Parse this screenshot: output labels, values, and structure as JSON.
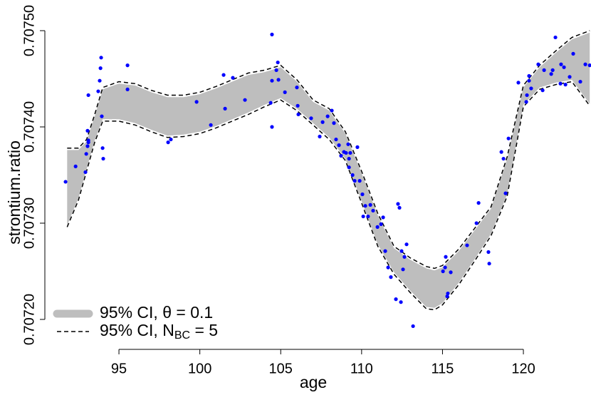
{
  "chart_data": {
    "type": "scatter",
    "xlabel": "age",
    "ylabel": "strontium.ratio",
    "xlim": [
      91.6,
      124.1
    ],
    "ylim": [
      0.70719,
      0.707505
    ],
    "xticks": [
      95,
      100,
      105,
      110,
      115,
      120
    ],
    "yticks": [
      {
        "value": 0.7072,
        "label": "0.70720"
      },
      {
        "value": 0.7073,
        "label": "0.70730"
      },
      {
        "value": 0.7074,
        "label": "0.70740"
      },
      {
        "value": 0.7075,
        "label": "0.70750"
      }
    ],
    "points": {
      "color": "#0000ff",
      "x": [
        91.7,
        92.32,
        92.93,
        92.98,
        93.06,
        93.11,
        93.06,
        93.11,
        93.11,
        93.72,
        93.81,
        93.86,
        93.9,
        93.94,
        93.99,
        94.03,
        95.53,
        95.53,
        98.04,
        98.21,
        99.8,
        100.68,
        101.47,
        101.56,
        102.04,
        102.79,
        104.38,
        104.46,
        104.46,
        104.46,
        104.73,
        104.82,
        104.86,
        105.26,
        106.0,
        106.05,
        106.09,
        106.88,
        107.41,
        107.59,
        107.9,
        108.16,
        108.29,
        108.42,
        108.6,
        108.73,
        108.91,
        109.04,
        109.22,
        109.22,
        109.17,
        109.3,
        109.44,
        109.57,
        109.74,
        109.88,
        110.05,
        110.1,
        110.23,
        110.4,
        110.54,
        110.71,
        110.98,
        111.2,
        111.33,
        111.46,
        111.64,
        111.81,
        112.12,
        112.25,
        112.34,
        112.43,
        112.47,
        112.56,
        112.65,
        112.78,
        113.18,
        115.03,
        115.16,
        115.2,
        115.29,
        115.33,
        115.51,
        116.52,
        117.1,
        117.23,
        117.84,
        117.89,
        118.64,
        118.77,
        118.9,
        119.08,
        119.69,
        120.18,
        120.22,
        120.35,
        120.35,
        120.48,
        120.92,
        121.19,
        121.28,
        121.72,
        121.81,
        121.98,
        122.29,
        122.33,
        122.51,
        122.6,
        122.86,
        123.08,
        123.52,
        123.83,
        124.1
      ],
      "values": [
        0.707343,
        0.707359,
        0.707353,
        0.707372,
        0.70738,
        0.707384,
        0.707396,
        0.707386,
        0.707433,
        0.707437,
        0.707448,
        0.707461,
        0.707472,
        0.707411,
        0.707378,
        0.707367,
        0.707464,
        0.707439,
        0.707384,
        0.707387,
        0.707426,
        0.707402,
        0.707454,
        0.707419,
        0.707451,
        0.707428,
        0.707425,
        0.707496,
        0.707448,
        0.7074,
        0.707459,
        0.707467,
        0.707449,
        0.707436,
        0.707441,
        0.707422,
        0.707413,
        0.707409,
        0.70739,
        0.707405,
        0.707411,
        0.707417,
        0.707404,
        0.707387,
        0.707381,
        0.70737,
        0.707374,
        0.707373,
        0.707367,
        0.707358,
        0.707382,
        0.707373,
        0.70735,
        0.707344,
        0.707379,
        0.707344,
        0.70733,
        0.707307,
        0.707318,
        0.707307,
        0.707319,
        0.707313,
        0.707296,
        0.707299,
        0.707306,
        0.707271,
        0.707254,
        0.707244,
        0.707221,
        0.70732,
        0.707316,
        0.707218,
        0.707271,
        0.707252,
        0.707265,
        0.707278,
        0.707193,
        0.70725,
        0.707254,
        0.707265,
        0.707224,
        0.707227,
        0.707249,
        0.707277,
        0.7073,
        0.707321,
        0.70727,
        0.707258,
        0.707374,
        0.707367,
        0.707331,
        0.707388,
        0.707446,
        0.707426,
        0.707433,
        0.707453,
        0.707448,
        0.70744,
        0.707465,
        0.707438,
        0.707459,
        0.707455,
        0.707459,
        0.707493,
        0.707445,
        0.707465,
        0.707462,
        0.707444,
        0.707452,
        0.707476,
        0.707447,
        0.707465,
        0.707464
      ]
    },
    "bands": [
      {
        "name": "95% CI, θ = 0.1",
        "color": "#bebebe",
        "style": "fill",
        "x": [
          91.8,
          92.5,
          93,
          93.5,
          94,
          95,
          96,
          97,
          98,
          99,
          100,
          101,
          102,
          103,
          104,
          105,
          106,
          107,
          108,
          109,
          110,
          111,
          112,
          113,
          114,
          114.5,
          115,
          116,
          117,
          118,
          119,
          120,
          121,
          122,
          123,
          124.1
        ],
        "upper": [
          0.707376,
          0.707376,
          0.707385,
          0.707411,
          0.707439,
          0.707445,
          0.707443,
          0.707436,
          0.707431,
          0.707431,
          0.707434,
          0.70744,
          0.707447,
          0.707454,
          0.707457,
          0.707462,
          0.707447,
          0.707426,
          0.707417,
          0.707393,
          0.707352,
          0.707308,
          0.707274,
          0.707262,
          0.707253,
          0.707251,
          0.707254,
          0.707271,
          0.707293,
          0.707315,
          0.707367,
          0.707441,
          0.707462,
          0.707477,
          0.707491,
          0.707498
        ],
        "lower": [
          0.707298,
          0.707326,
          0.707356,
          0.707386,
          0.707408,
          0.707408,
          0.707404,
          0.707397,
          0.707391,
          0.707392,
          0.707395,
          0.707401,
          0.707408,
          0.707415,
          0.707423,
          0.70743,
          0.707419,
          0.707404,
          0.707389,
          0.707367,
          0.707323,
          0.707278,
          0.707249,
          0.70723,
          0.707213,
          0.707212,
          0.707217,
          0.707238,
          0.707263,
          0.707289,
          0.70733,
          0.707423,
          0.707441,
          0.707446,
          0.707449,
          0.707424
        ]
      },
      {
        "name": {
          "main": "95% CI, N",
          "sub": "BC",
          "rest": " = 5"
        },
        "color": "#000000",
        "style": "dashed",
        "x": [
          91.8,
          92.5,
          93,
          93.5,
          94,
          95,
          96,
          97,
          98,
          99,
          100,
          101,
          102,
          103,
          104,
          105,
          106,
          107,
          108,
          109,
          110,
          111,
          112,
          113,
          114,
          114.5,
          115,
          116,
          117,
          118,
          119,
          120,
          121,
          122,
          123,
          124.1
        ],
        "upper": [
          0.707378,
          0.707378,
          0.707387,
          0.707413,
          0.707441,
          0.707447,
          0.707445,
          0.707438,
          0.707433,
          0.707433,
          0.707436,
          0.707442,
          0.707449,
          0.707456,
          0.707459,
          0.707464,
          0.707449,
          0.707428,
          0.707419,
          0.707395,
          0.707354,
          0.70731,
          0.707276,
          0.707264,
          0.707255,
          0.707253,
          0.707256,
          0.707273,
          0.707295,
          0.707317,
          0.707369,
          0.707443,
          0.707464,
          0.707479,
          0.707493,
          0.7075
        ],
        "lower": [
          0.707296,
          0.707324,
          0.707354,
          0.707384,
          0.707406,
          0.707406,
          0.707402,
          0.707395,
          0.707389,
          0.70739,
          0.707393,
          0.707399,
          0.707406,
          0.707413,
          0.707421,
          0.707428,
          0.707417,
          0.707402,
          0.707387,
          0.707365,
          0.707321,
          0.707276,
          0.707247,
          0.707228,
          0.707211,
          0.70721,
          0.707215,
          0.707236,
          0.707261,
          0.707287,
          0.707328,
          0.707421,
          0.707439,
          0.707444,
          0.707447,
          0.707422
        ]
      }
    ]
  }
}
